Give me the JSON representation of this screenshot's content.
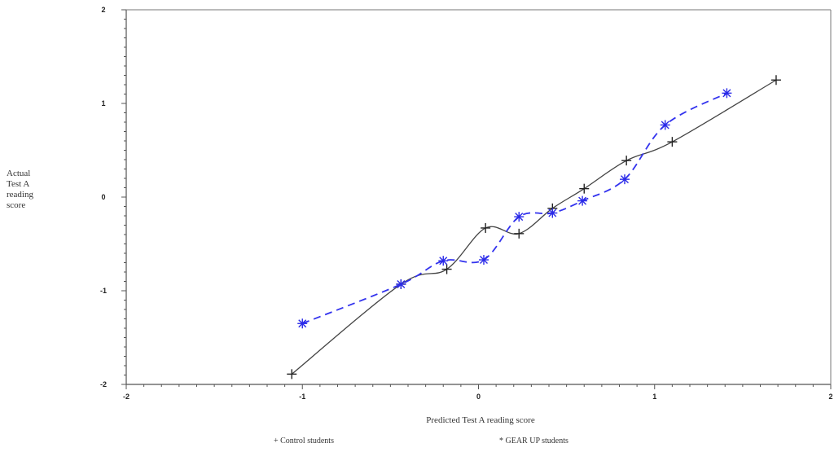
{
  "chart_data": {
    "type": "line",
    "xlabel": "Predicted Test A reading score",
    "ylabel_lines": [
      "Actual",
      "Test A",
      "reading",
      "score"
    ],
    "xlim": [
      -2,
      2
    ],
    "ylim": [
      -2,
      2
    ],
    "x_ticks": [
      "-2",
      "-1",
      "0",
      "1",
      "2"
    ],
    "y_ticks": [
      "2",
      "1",
      "0",
      "-1",
      "-2"
    ],
    "grid": false,
    "legend_position": "bottom",
    "series": [
      {
        "name": "Control students",
        "legend_text": "+ Control students",
        "marker": "+",
        "line": "solid",
        "color": "#444444",
        "points": [
          [
            -1.06,
            -1.89
          ],
          [
            -0.44,
            -0.93
          ],
          [
            -0.18,
            -0.77
          ],
          [
            0.04,
            -0.33
          ],
          [
            0.23,
            -0.39
          ],
          [
            0.42,
            -0.12
          ],
          [
            0.6,
            0.09
          ],
          [
            0.84,
            0.39
          ],
          [
            1.1,
            0.59
          ],
          [
            1.69,
            1.25
          ]
        ]
      },
      {
        "name": "GEAR UP students",
        "legend_text": "* GEAR UP students",
        "marker": "*",
        "line": "dashed",
        "color": "#3333ee",
        "points": [
          [
            -1.0,
            -1.35
          ],
          [
            -0.44,
            -0.93
          ],
          [
            -0.2,
            -0.68
          ],
          [
            0.03,
            -0.67
          ],
          [
            0.23,
            -0.21
          ],
          [
            0.42,
            -0.17
          ],
          [
            0.59,
            -0.04
          ],
          [
            0.83,
            0.19
          ],
          [
            1.06,
            0.77
          ],
          [
            1.41,
            1.11
          ]
        ]
      }
    ]
  }
}
